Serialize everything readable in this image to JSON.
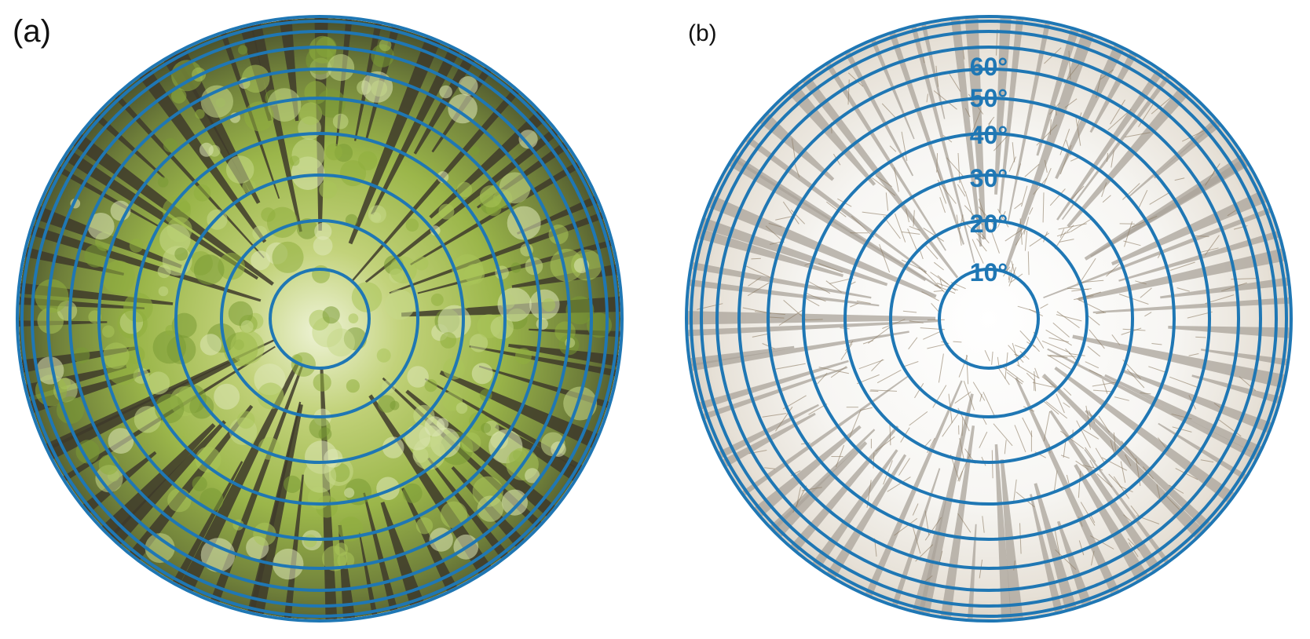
{
  "panels": [
    {
      "label": "(a)",
      "theme": "summer-canopy"
    },
    {
      "label": "(b)",
      "theme": "winter-canopy"
    }
  ],
  "rings": {
    "color": "#1f77b4",
    "labels": [
      "10°",
      "20°",
      "30°",
      "40°",
      "50°",
      "60°"
    ]
  },
  "colors": {
    "sky": "#ffffff",
    "summer_foliage": "#9bb64a",
    "summer_trunk": "#3e3a2a",
    "winter_trunk": "#a9a39a",
    "winter_twigs": "#8c7b63"
  }
}
